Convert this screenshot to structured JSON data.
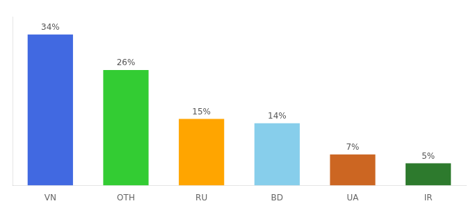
{
  "chart_data": {
    "type": "bar",
    "categories": [
      "VN",
      "OTH",
      "RU",
      "BD",
      "UA",
      "IR"
    ],
    "values": [
      34,
      26,
      15,
      14,
      7,
      5
    ],
    "value_labels": [
      "34%",
      "26%",
      "15%",
      "14%",
      "7%",
      "5%"
    ],
    "colors": [
      "#4169e1",
      "#33cc33",
      "#ffa500",
      "#87ceeb",
      "#cc6622",
      "#2d7a2d"
    ],
    "ylim": [
      0,
      38
    ],
    "grid": false,
    "data_labels": true,
    "tick_labels": "x"
  }
}
